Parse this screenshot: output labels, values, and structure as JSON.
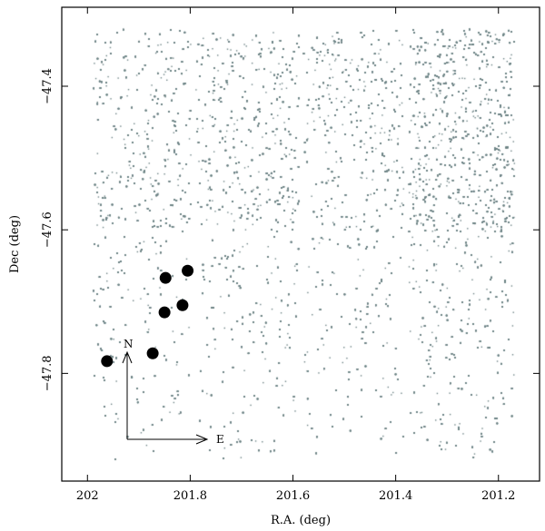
{
  "chart_data": {
    "type": "scatter",
    "title": "",
    "xlabel": "R.A. (deg)",
    "ylabel": "Dec (deg)",
    "xlim": [
      202.05,
      201.12
    ],
    "ylim": [
      -47.95,
      -47.29
    ],
    "x_reversed": true,
    "x_ticks": [
      201.2,
      201.4,
      201.6,
      201.8,
      202
    ],
    "x_tick_labels": [
      "201.2",
      "201.4",
      "201.6",
      "201.8",
      "202"
    ],
    "y_ticks": [
      -47.4,
      -47.6,
      -47.8
    ],
    "y_tick_labels": [
      "−47.4",
      "−47.6",
      "−47.8"
    ],
    "grid": false,
    "colors": {
      "field_stars": "#6e8486",
      "highlighted": "#000000"
    },
    "series": [
      {
        "kind": "density-field",
        "x_range": [
          201.17,
          201.99
        ],
        "y_range": [
          -47.92,
          -47.32
        ],
        "gaps_x": [
          201.38,
          201.585,
          201.795
        ],
        "gap_y": -47.605
      },
      {
        "kind": "highlighted",
        "points": [
          {
            "x": 201.805,
            "y": -47.657
          },
          {
            "x": 201.848,
            "y": -47.667
          },
          {
            "x": 201.815,
            "y": -47.705
          },
          {
            "x": 201.85,
            "y": -47.715
          },
          {
            "x": 201.873,
            "y": -47.772
          },
          {
            "x": 201.962,
            "y": -47.783
          }
        ]
      }
    ],
    "compass": {
      "north_label": "N",
      "east_label": "E"
    }
  }
}
